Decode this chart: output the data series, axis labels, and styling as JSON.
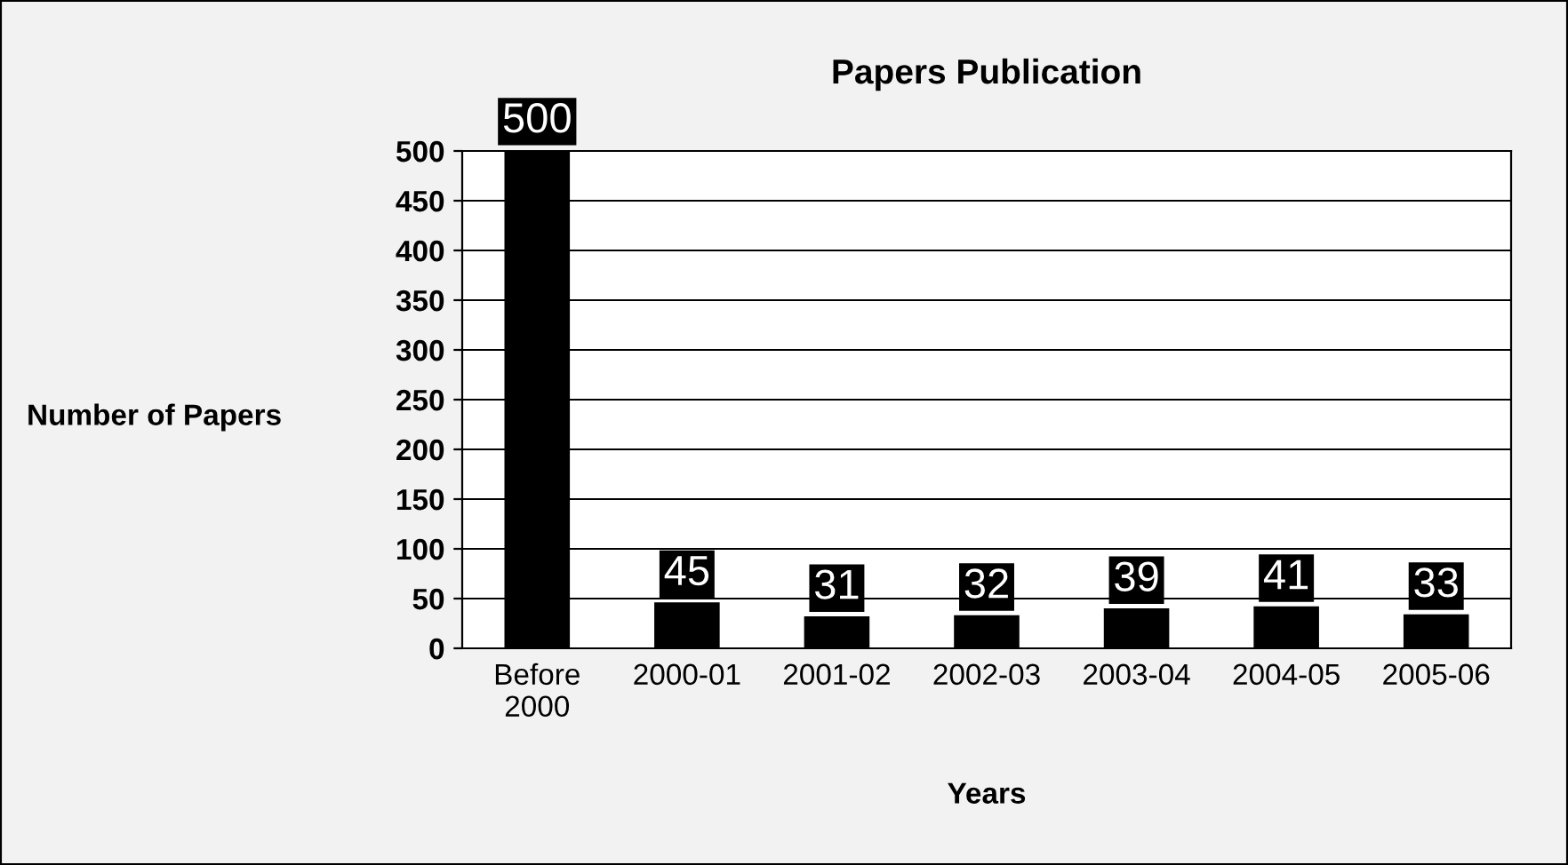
{
  "chart_data": {
    "type": "bar",
    "title": "Papers Publication",
    "xlabel": "Years",
    "ylabel": "Number of Papers",
    "categories": [
      "Before\n2000",
      "2000-01",
      "2001-02",
      "2002-03",
      "2003-04",
      "2004-05",
      "2005-06"
    ],
    "values": [
      500,
      45,
      31,
      32,
      39,
      41,
      33
    ],
    "color": "#000000",
    "ylim": [
      0,
      500
    ],
    "yticks": [
      0,
      50,
      100,
      150,
      200,
      250,
      300,
      350,
      400,
      450,
      500
    ],
    "grid": "y",
    "data_labels": true
  }
}
